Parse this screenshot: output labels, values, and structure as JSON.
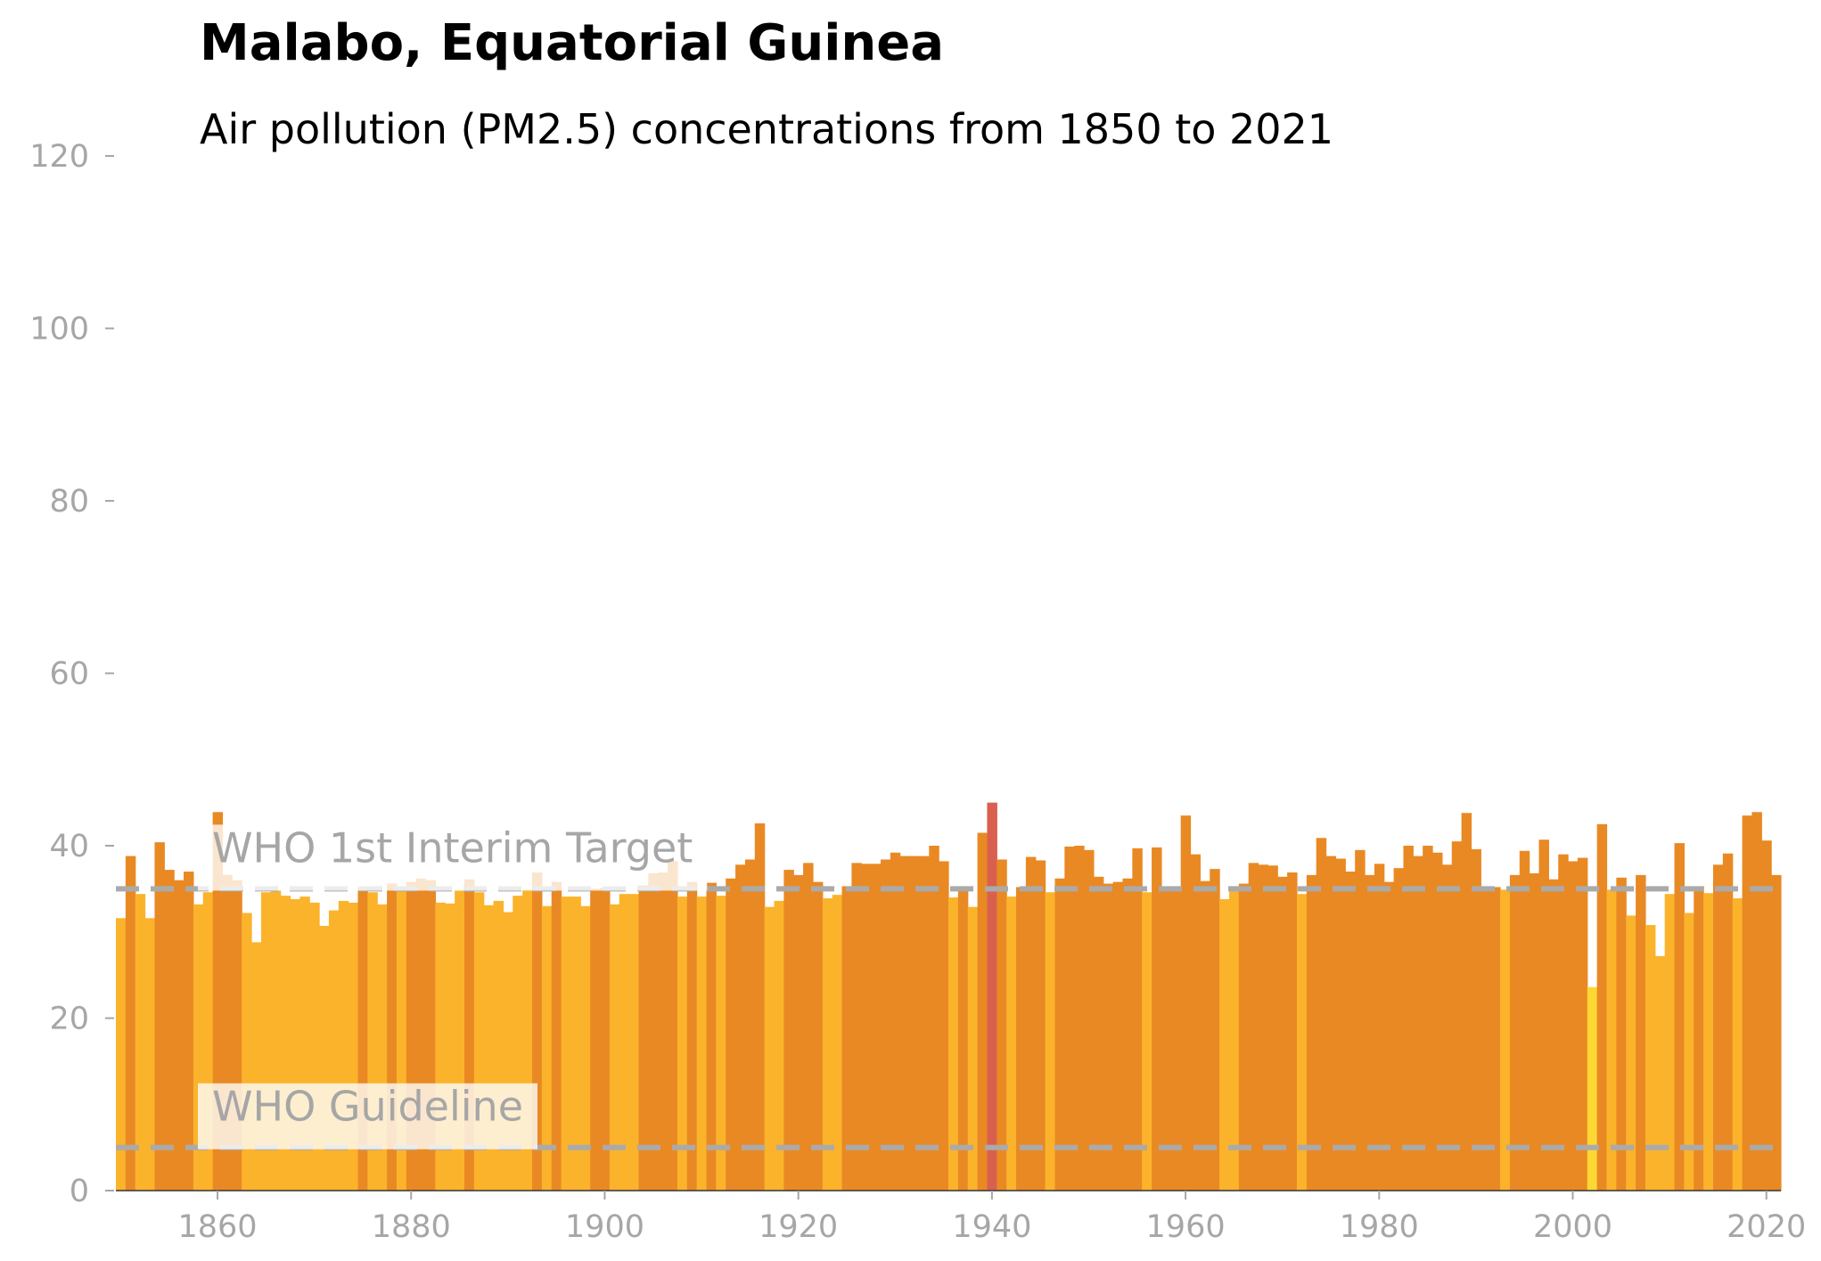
{
  "title": "Malabo, Equatorial Guinea",
  "subtitle": "Air pollution (PM2.5) concentrations from 1850 to 2021",
  "colors": {
    "low": "#fdd835",
    "mid": "#fbb32c",
    "high": "#e98924",
    "peak": "#d9604f",
    "reference_line": "#aaaaaa",
    "tick_text": "#a6a6a6"
  },
  "chart_data": {
    "type": "bar",
    "x_start": 1850,
    "x_end": 2021,
    "xlim": [
      1850,
      2022
    ],
    "ylim": [
      0,
      120
    ],
    "xticks": [
      1860,
      1880,
      1900,
      1920,
      1940,
      1960,
      1980,
      2000,
      2020
    ],
    "yticks": [
      0,
      20,
      40,
      60,
      80,
      100,
      120
    ],
    "reference_lines": [
      {
        "label": "WHO 1st Interim Target",
        "value": 35
      },
      {
        "label": "WHO Guideline",
        "value": 5
      }
    ],
    "values": [
      31.6,
      38.8,
      34.4,
      31.6,
      40.4,
      37.2,
      36.0,
      37.0,
      33.2,
      34.6,
      43.9,
      36.6,
      36.0,
      32.2,
      28.8,
      34.6,
      34.8,
      34.2,
      33.8,
      34.1,
      33.4,
      30.7,
      32.5,
      33.6,
      33.4,
      35.2,
      34.6,
      33.2,
      35.6,
      34.8,
      35.8,
      36.2,
      36.0,
      33.4,
      33.3,
      34.8,
      36.1,
      34.6,
      33.1,
      33.6,
      32.3,
      34.2,
      34.9,
      36.9,
      33.0,
      35.8,
      34.1,
      34.1,
      33.0,
      35.0,
      35.1,
      33.2,
      34.4,
      34.4,
      35.4,
      36.8,
      36.9,
      38.2,
      34.1,
      35.8,
      34.1,
      35.7,
      34.2,
      36.2,
      37.8,
      38.4,
      42.6,
      32.9,
      33.6,
      37.2,
      36.6,
      38.0,
      35.8,
      33.9,
      34.3,
      35.3,
      38.0,
      37.9,
      37.9,
      38.4,
      39.2,
      38.8,
      38.8,
      38.8,
      40.0,
      38.2,
      34.0,
      35.3,
      32.9,
      41.5,
      45.0,
      38.4,
      34.1,
      35.2,
      38.7,
      38.3,
      34.6,
      36.2,
      39.9,
      40.0,
      39.5,
      36.4,
      35.6,
      35.8,
      36.2,
      39.7,
      34.6,
      39.8,
      35.2,
      35.2,
      43.5,
      39.0,
      35.9,
      37.3,
      33.8,
      34.9,
      35.6,
      38.0,
      37.8,
      37.7,
      36.4,
      36.9,
      34.4,
      36.6,
      40.9,
      38.8,
      38.5,
      37.0,
      39.5,
      36.6,
      37.9,
      35.8,
      37.4,
      40.0,
      38.8,
      40.0,
      39.2,
      37.8,
      40.5,
      43.8,
      39.6,
      35.1,
      35.2,
      34.9,
      36.6,
      39.4,
      36.8,
      40.7,
      36.1,
      39.0,
      38.2,
      38.6,
      23.6,
      42.5,
      34.9,
      36.3,
      31.9,
      36.6,
      30.8,
      27.2,
      34.4,
      40.3,
      32.2,
      35.3,
      34.5,
      37.8,
      39.1,
      33.9,
      43.5,
      43.9,
      40.6,
      36.6
    ]
  }
}
